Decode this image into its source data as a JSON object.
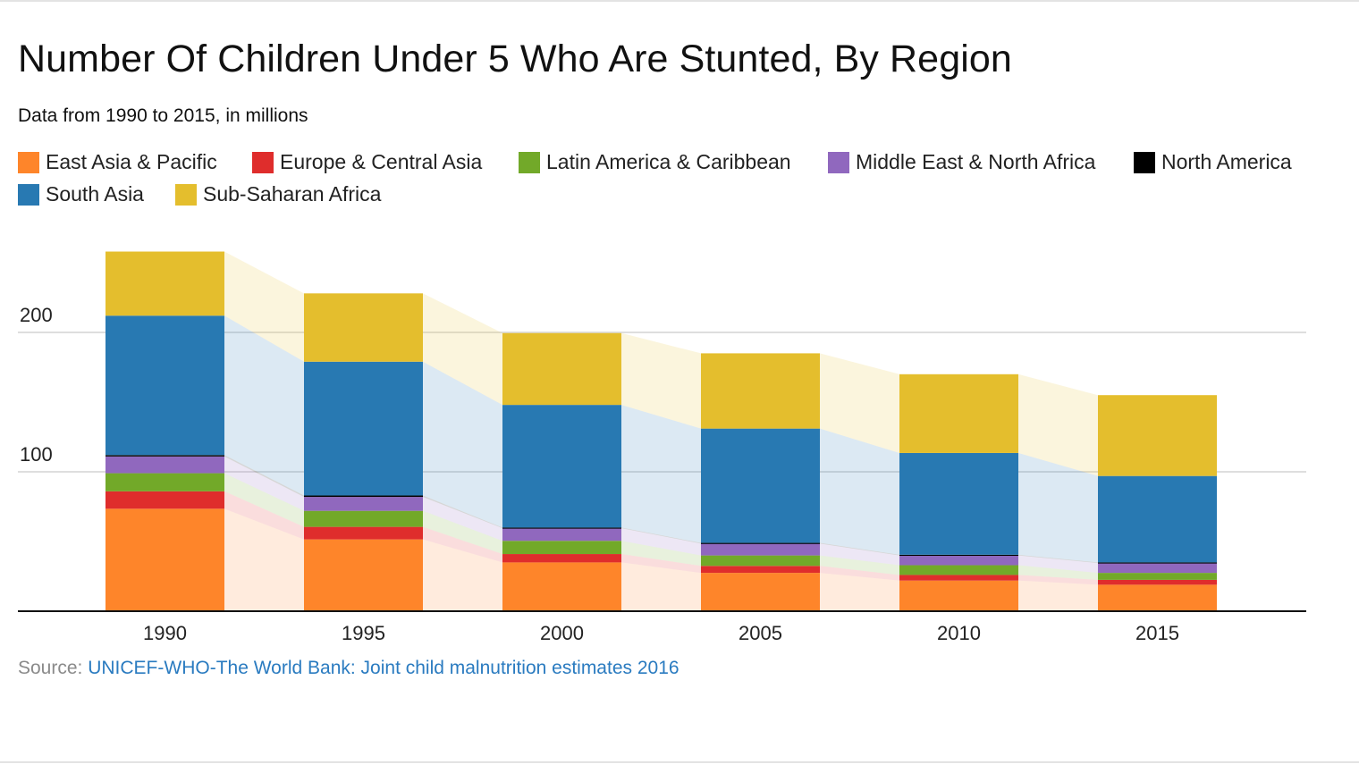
{
  "source": {
    "prefix": "Source: ",
    "link_text": "UNICEF-WHO-The World Bank: Joint child malnutrition estimates 2016"
  },
  "chart_data": {
    "type": "bar",
    "stacked": true,
    "title": "Number Of Children Under 5 Who Are Stunted, By Region",
    "subtitle": "Data from 1990 to 2015, in millions",
    "categories": [
      "1990",
      "1995",
      "2000",
      "2005",
      "2010",
      "2015"
    ],
    "yticks": [
      100,
      200
    ],
    "ylim": [
      0,
      260
    ],
    "grid": true,
    "legend_position": "top",
    "series": [
      {
        "name": "East Asia & Pacific",
        "color": "#fe852a",
        "values": [
          73.5,
          51.5,
          35,
          27.5,
          22,
          19
        ]
      },
      {
        "name": "Europe & Central Asia",
        "color": "#df2d2c",
        "values": [
          12.5,
          9,
          6,
          5,
          4,
          3.5
        ]
      },
      {
        "name": "Latin America & Caribbean",
        "color": "#72a929",
        "values": [
          13,
          11.5,
          9.5,
          7.5,
          7,
          5
        ]
      },
      {
        "name": "Middle East & North Africa",
        "color": "#9068be",
        "values": [
          12,
          10,
          9,
          8.5,
          7,
          7
        ]
      },
      {
        "name": "North America",
        "color": "#000000",
        "values": [
          1,
          1,
          0.5,
          0.5,
          0.5,
          0.5
        ]
      },
      {
        "name": "South Asia",
        "color": "#2879b2",
        "values": [
          100,
          96,
          88,
          82,
          73,
          62
        ]
      },
      {
        "name": "Sub-Saharan Africa",
        "color": "#e4be2d",
        "values": [
          46,
          49,
          51.5,
          54,
          56.5,
          58
        ]
      }
    ]
  }
}
